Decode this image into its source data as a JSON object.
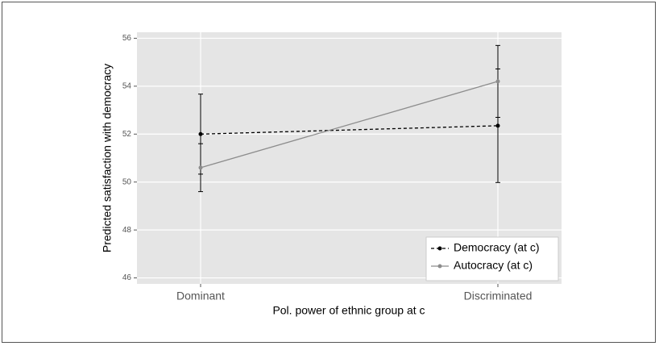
{
  "chart_data": {
    "type": "line",
    "x_label": "Pol. power of ethnic group at c",
    "y_label": "Predicted satisfaction with democracy",
    "categories": [
      "Dominant",
      "Discriminated"
    ],
    "series": [
      {
        "name": "Democracy (at c)",
        "color": "#000000",
        "dash": true,
        "values": [
          52.0,
          52.35
        ],
        "errors": [
          1.67,
          2.37
        ]
      },
      {
        "name": "Autocracy (at c)",
        "color": "#8c8c8c",
        "dash": false,
        "values": [
          50.6,
          54.2
        ],
        "errors": [
          1.0,
          1.5
        ]
      }
    ],
    "ylim": [
      45.75,
      56.25
    ],
    "yticks": [
      46,
      48,
      50,
      52,
      54,
      56
    ],
    "grid": true,
    "legend": "bottom-right"
  }
}
